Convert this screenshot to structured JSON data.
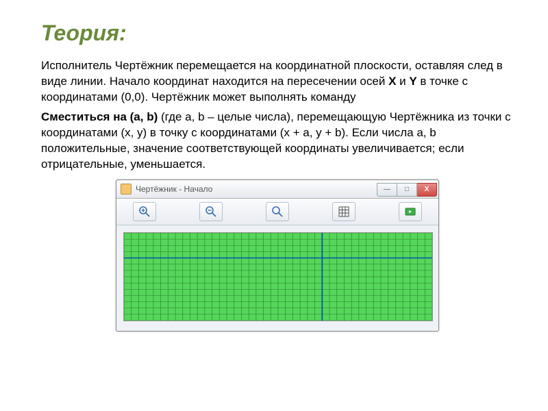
{
  "title": {
    "text": "Теория:",
    "color": "#6a8a3a"
  },
  "paragraphs": {
    "p1_prefix": "Исполнитель Чертёжник перемещается на координатной плоскости, оставляя след в виде линии. Начало координат находится на пересечении осей ",
    "p1_x": "X",
    "p1_mid": " и ",
    "p1_y": "Y",
    "p1_suffix": " в точке с координатами (0,0). Чертёжник может выполнять команду",
    "p2_bold": "Сместиться на (a, b)",
    "p2_rest": " (где a, b – целые числа), перемещающую Чертёжника из точки с координатами (x, y) в точку с координатами (x + a, y + b). Если числа a, b положительные, значение соответствующей координаты увеличивается; если отрицательные, уменьшается."
  },
  "window": {
    "title": "Чертёжник - Начало",
    "minimize": "—",
    "maximize": "□",
    "close": "X"
  },
  "grid": {
    "bg_color": "#56d65a",
    "line_color": "#2e8f33",
    "axis_color": "#0a5aa8",
    "cols": 42,
    "rows": 14,
    "axis_x_row": 4,
    "axis_y_col": 27
  }
}
